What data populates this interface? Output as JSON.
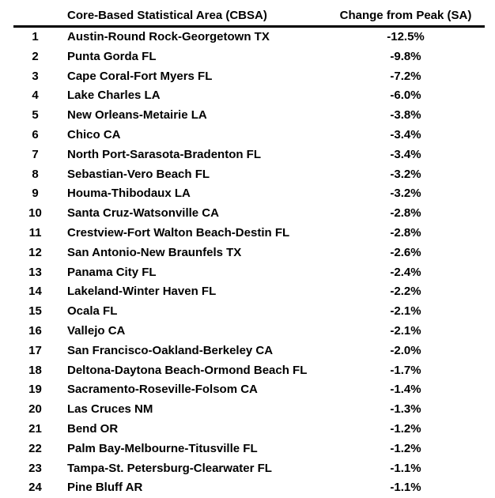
{
  "colors": {
    "background": "#ffffff",
    "text": "#000000",
    "header_rule": "#000000"
  },
  "chart_data": {
    "type": "table",
    "columns": [
      "",
      "Core-Based Statistical Area (CBSA)",
      "Change from Peak (SA)"
    ],
    "rows": [
      {
        "rank": "1",
        "cbsa": "Austin-Round Rock-Georgetown TX",
        "change": "-12.5%"
      },
      {
        "rank": "2",
        "cbsa": "Punta Gorda FL",
        "change": "-9.8%"
      },
      {
        "rank": "3",
        "cbsa": "Cape Coral-Fort Myers FL",
        "change": "-7.2%"
      },
      {
        "rank": "4",
        "cbsa": "Lake Charles LA",
        "change": "-6.0%"
      },
      {
        "rank": "5",
        "cbsa": "New Orleans-Metairie LA",
        "change": "-3.8%"
      },
      {
        "rank": "6",
        "cbsa": "Chico CA",
        "change": "-3.4%"
      },
      {
        "rank": "7",
        "cbsa": "North Port-Sarasota-Bradenton FL",
        "change": "-3.4%"
      },
      {
        "rank": "8",
        "cbsa": "Sebastian-Vero Beach FL",
        "change": "-3.2%"
      },
      {
        "rank": "9",
        "cbsa": "Houma-Thibodaux LA",
        "change": "-3.2%"
      },
      {
        "rank": "10",
        "cbsa": "Santa Cruz-Watsonville CA",
        "change": "-2.8%"
      },
      {
        "rank": "11",
        "cbsa": "Crestview-Fort Walton Beach-Destin FL",
        "change": "-2.8%"
      },
      {
        "rank": "12",
        "cbsa": "San Antonio-New Braunfels TX",
        "change": "-2.6%"
      },
      {
        "rank": "13",
        "cbsa": "Panama City FL",
        "change": "-2.4%"
      },
      {
        "rank": "14",
        "cbsa": "Lakeland-Winter Haven FL",
        "change": "-2.2%"
      },
      {
        "rank": "15",
        "cbsa": "Ocala FL",
        "change": "-2.1%"
      },
      {
        "rank": "16",
        "cbsa": "Vallejo CA",
        "change": "-2.1%"
      },
      {
        "rank": "17",
        "cbsa": "San Francisco-Oakland-Berkeley CA",
        "change": "-2.0%"
      },
      {
        "rank": "18",
        "cbsa": "Deltona-Daytona Beach-Ormond Beach FL",
        "change": "-1.7%"
      },
      {
        "rank": "19",
        "cbsa": "Sacramento-Roseville-Folsom CA",
        "change": "-1.4%"
      },
      {
        "rank": "20",
        "cbsa": "Las Cruces NM",
        "change": "-1.3%"
      },
      {
        "rank": "21",
        "cbsa": "Bend OR",
        "change": "-1.2%"
      },
      {
        "rank": "22",
        "cbsa": "Palm Bay-Melbourne-Titusville FL",
        "change": "-1.2%"
      },
      {
        "rank": "23",
        "cbsa": "Tampa-St. Petersburg-Clearwater FL",
        "change": "-1.1%"
      },
      {
        "rank": "24",
        "cbsa": "Pine Bluff AR",
        "change": "-1.1%"
      }
    ]
  }
}
